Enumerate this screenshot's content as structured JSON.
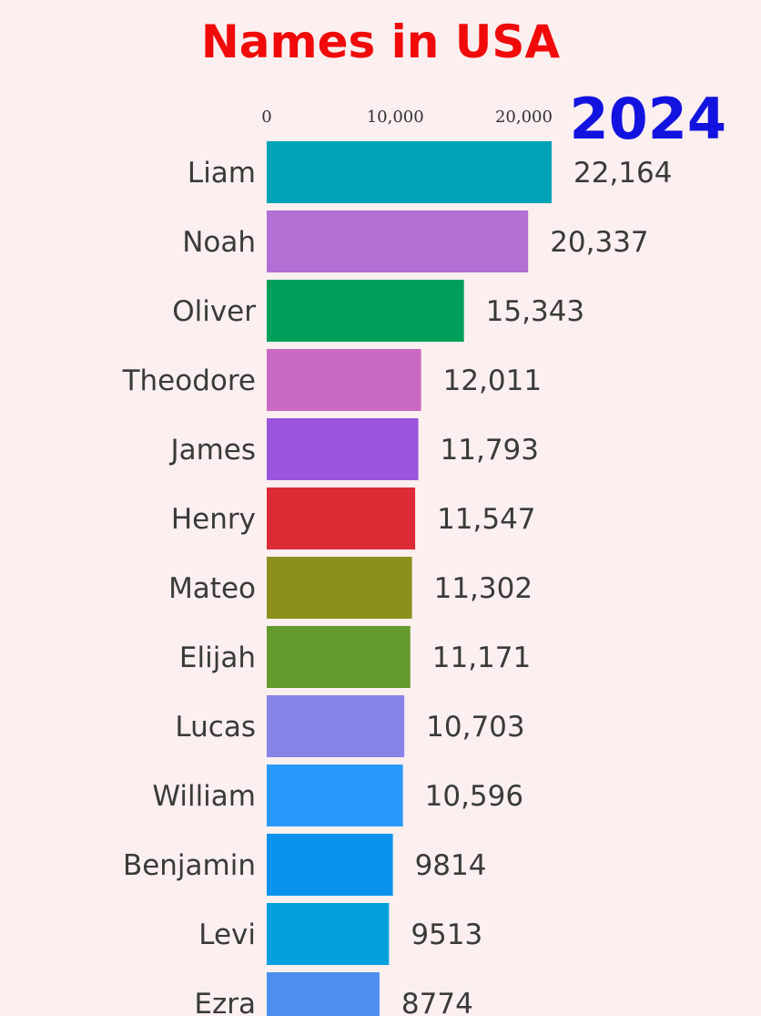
{
  "chart_data": {
    "type": "bar",
    "orientation": "horizontal",
    "title": "Names in USA",
    "year_label": "2024",
    "xticks": [
      0,
      10000,
      20000
    ],
    "xtick_labels": [
      "0",
      "10,000",
      "20,000"
    ],
    "categories": [
      "Liam",
      "Noah",
      "Oliver",
      "Theodore",
      "James",
      "Henry",
      "Mateo",
      "Elijah",
      "Lucas",
      "William",
      "Benjamin",
      "Levi",
      "Ezra"
    ],
    "values": [
      22164,
      20337,
      15343,
      12011,
      11793,
      11547,
      11302,
      11171,
      10703,
      10596,
      9814,
      9513,
      8774
    ],
    "value_labels": [
      "22,164",
      "20,337",
      "15,343",
      "12,011",
      "11,793",
      "11,547",
      "11,302",
      "11,171",
      "10,703",
      "10,596",
      "9814",
      "9513",
      "8774"
    ],
    "colors": [
      "#00a2b6",
      "#b36fd4",
      "#00a05a",
      "#c86ac2",
      "#9a55dc",
      "#dd2b35",
      "#8d8f1d",
      "#659a2e",
      "#8883e6",
      "#2b99fb",
      "#0a91ec",
      "#03a0dd",
      "#4d8ef0"
    ],
    "xlim": [
      0,
      22164
    ],
    "grid": false,
    "legend": "none"
  }
}
